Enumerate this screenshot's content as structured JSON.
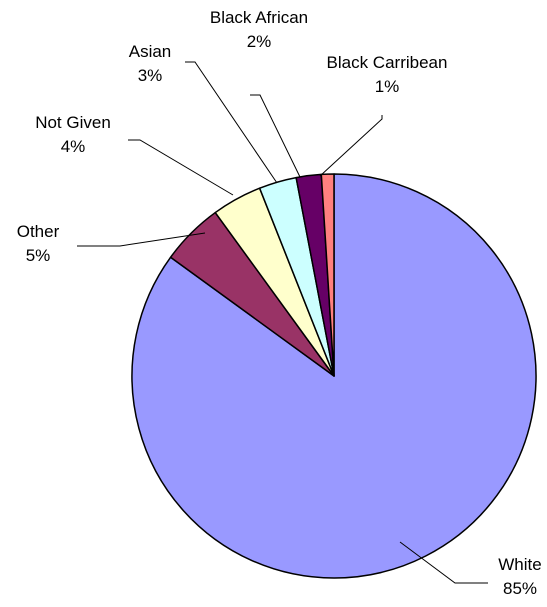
{
  "chart_data": {
    "type": "pie",
    "title": "",
    "start": "top, clockwise",
    "slices": [
      {
        "label": "White",
        "value": 85,
        "value_label": "85%",
        "color": "#9999FF"
      },
      {
        "label": "Other",
        "value": 5,
        "value_label": "5%",
        "color": "#993366"
      },
      {
        "label": "Not Given",
        "value": 4,
        "value_label": "4%",
        "color": "#FFFFCC"
      },
      {
        "label": "Asian",
        "value": 3,
        "value_label": "3%",
        "color": "#CCFFFF"
      },
      {
        "label": "Black African",
        "value": 2,
        "value_label": "2%",
        "color": "#660066"
      },
      {
        "label": "Black Carribean",
        "value": 1,
        "value_label": "1%",
        "color": "#FF8080"
      }
    ]
  }
}
